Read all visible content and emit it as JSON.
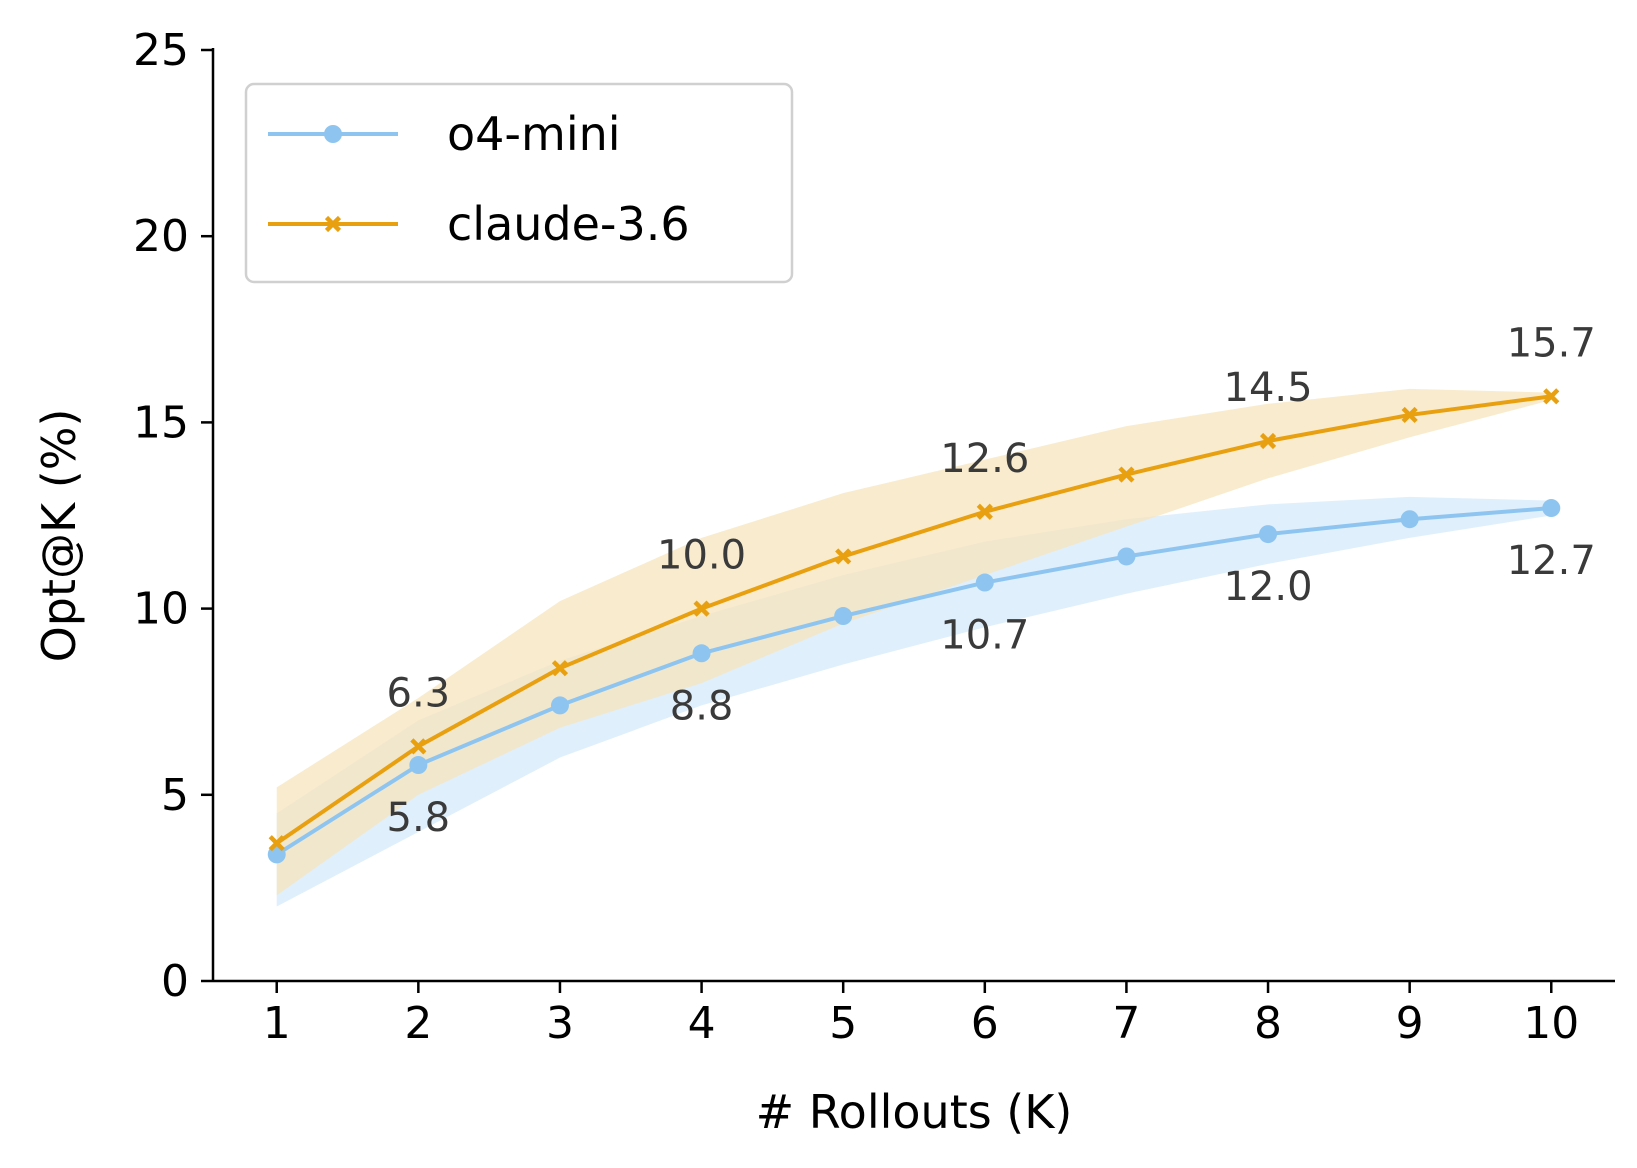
{
  "chart_data": {
    "type": "line",
    "xlabel": "# Rollouts (K)",
    "ylabel": "Opt@K (%)",
    "x": [
      1,
      2,
      3,
      4,
      5,
      6,
      7,
      8,
      9,
      10
    ],
    "xlim": [
      0.55,
      10.45
    ],
    "ylim": [
      0,
      25
    ],
    "xticks": [
      1,
      2,
      3,
      4,
      5,
      6,
      7,
      8,
      9,
      10
    ],
    "yticks": [
      0,
      5,
      10,
      15,
      20,
      25
    ],
    "grid": false,
    "legend_position": "top-left",
    "series": [
      {
        "name": "o4-mini",
        "color": "#8ec5f0",
        "band_color": "#d6e9fb",
        "marker": "circle",
        "values": [
          3.4,
          5.8,
          7.4,
          8.8,
          9.8,
          10.7,
          11.4,
          12.0,
          12.4,
          12.7
        ],
        "lower": [
          2.0,
          4.0,
          6.0,
          7.4,
          8.5,
          9.5,
          10.4,
          11.2,
          11.9,
          12.5
        ],
        "upper": [
          4.5,
          7.0,
          8.6,
          9.8,
          10.9,
          11.8,
          12.4,
          12.8,
          13.0,
          12.9
        ],
        "labels": [
          {
            "x": 2,
            "text": "5.8"
          },
          {
            "x": 4,
            "text": "8.8"
          },
          {
            "x": 6,
            "text": "10.7"
          },
          {
            "x": 8,
            "text": "12.0"
          },
          {
            "x": 10,
            "text": "12.7"
          }
        ]
      },
      {
        "name": "claude-3.6",
        "color": "#e8a010",
        "band_color": "#f7e4bc",
        "marker": "x",
        "values": [
          3.7,
          6.3,
          8.4,
          10.0,
          11.4,
          12.6,
          13.6,
          14.5,
          15.2,
          15.7
        ],
        "lower": [
          2.3,
          5.0,
          6.8,
          8.0,
          9.6,
          10.9,
          12.2,
          13.5,
          14.6,
          15.6
        ],
        "upper": [
          5.2,
          7.6,
          10.2,
          11.9,
          13.1,
          14.0,
          14.9,
          15.5,
          15.9,
          15.8
        ],
        "labels": [
          {
            "x": 2,
            "text": "6.3"
          },
          {
            "x": 4,
            "text": "10.0"
          },
          {
            "x": 6,
            "text": "12.6"
          },
          {
            "x": 8,
            "text": "14.5"
          },
          {
            "x": 10,
            "text": "15.7"
          }
        ]
      }
    ]
  }
}
